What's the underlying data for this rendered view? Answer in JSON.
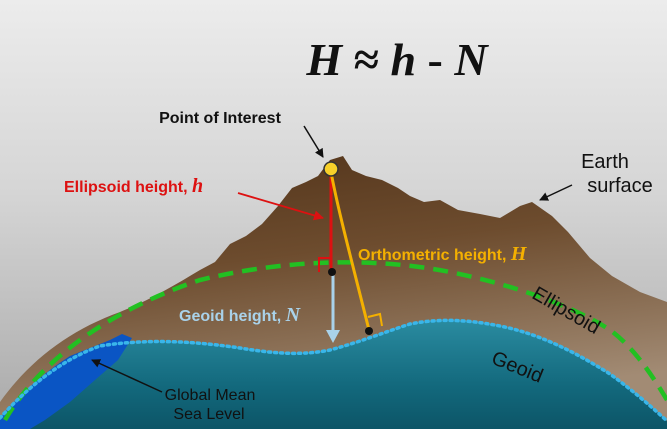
{
  "formula": {
    "H": "H",
    "approx": " ≈ ",
    "h": "h",
    "minus": " - ",
    "N": "N"
  },
  "labels": {
    "point_of_interest": "Point of Interest",
    "ellipsoid_height": "Ellipsoid height, ",
    "ellipsoid_height_symbol": "h",
    "earth_surface_line1": "Earth",
    "earth_surface_line2": "surface",
    "orthometric_height": "Orthometric height, ",
    "orthometric_height_symbol": "H",
    "geoid_height": "Geoid height, ",
    "geoid_height_symbol": "N",
    "ellipsoid": "Ellipsoid",
    "geoid": "Geoid",
    "gmsl_line1": "Global Mean",
    "gmsl_line2": "Sea Level"
  },
  "colors": {
    "background": "#d2d2d2",
    "mountain": "#6b4a2c",
    "ocean": "#1d7a8e",
    "ellipsoid_line": "#22c022",
    "geoid_line": "#39b6ea",
    "ellipsoid_height": "#dd1111",
    "orthometric_height": "#f4b000",
    "geoid_height": "#a9d2ea",
    "sea": "#0a55c4"
  }
}
